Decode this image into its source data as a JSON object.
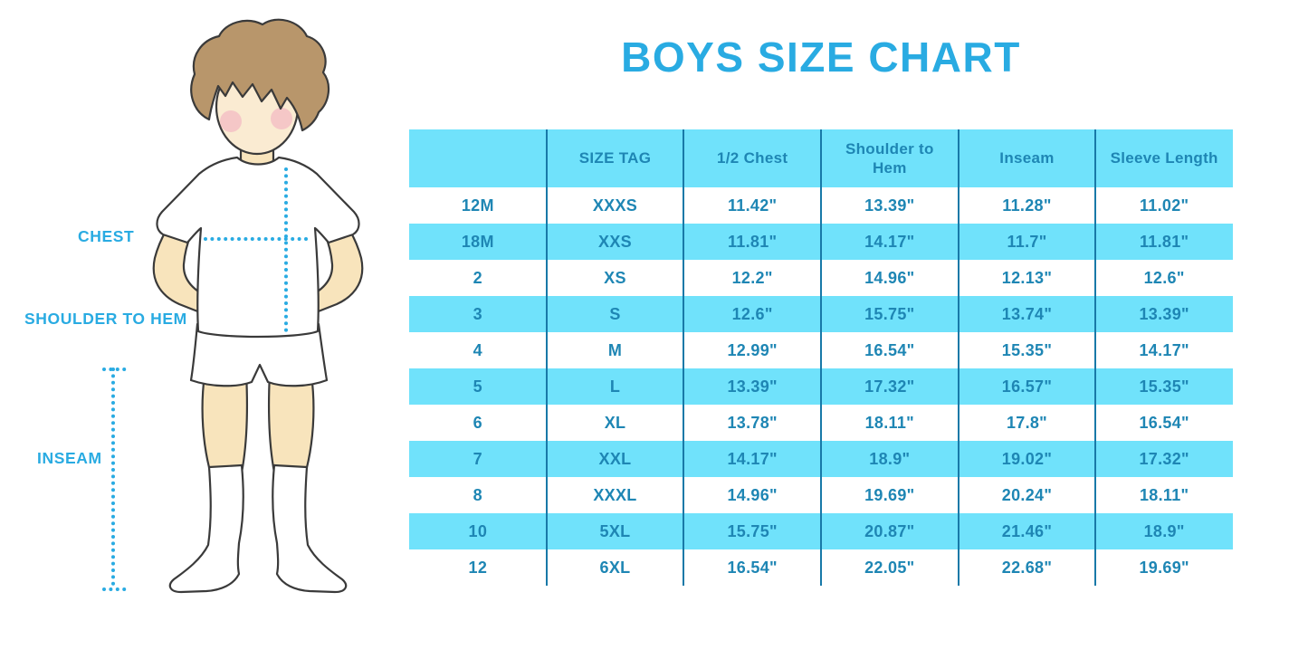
{
  "title": "BOYS SIZE CHART",
  "colors": {
    "title_blue": "#29ABE2",
    "table_cyan": "#70E2FB",
    "table_text": "#1E86B4",
    "divider_blue": "#1879A8",
    "dotted_line": "#29ABE2"
  },
  "figure": {
    "description": "boy-illustration",
    "labels": {
      "chest": "CHEST",
      "shoulder_to_hem": "SHOULDER TO HEM",
      "inseam": "INSEAM"
    }
  },
  "chart_data": {
    "type": "table",
    "title": "BOYS SIZE CHART",
    "headers": [
      "",
      "SIZE TAG",
      "1/2 Chest",
      "Shoulder to Hem",
      "Inseam",
      "Sleeve Length"
    ],
    "rows": [
      [
        "12M",
        "XXXS",
        "11.42\"",
        "13.39\"",
        "11.28\"",
        "11.02\""
      ],
      [
        "18M",
        "XXS",
        "11.81\"",
        "14.17\"",
        "11.7\"",
        "11.81\""
      ],
      [
        "2",
        "XS",
        "12.2\"",
        "14.96\"",
        "12.13\"",
        "12.6\""
      ],
      [
        "3",
        "S",
        "12.6\"",
        "15.75\"",
        "13.74\"",
        "13.39\""
      ],
      [
        "4",
        "M",
        "12.99\"",
        "16.54\"",
        "15.35\"",
        "14.17\""
      ],
      [
        "5",
        "L",
        "13.39\"",
        "17.32\"",
        "16.57\"",
        "15.35\""
      ],
      [
        "6",
        "XL",
        "13.78\"",
        "18.11\"",
        "17.8\"",
        "16.54\""
      ],
      [
        "7",
        "XXL",
        "14.17\"",
        "18.9\"",
        "19.02\"",
        "17.32\""
      ],
      [
        "8",
        "XXXL",
        "14.96\"",
        "19.69\"",
        "20.24\"",
        "18.11\""
      ],
      [
        "10",
        "5XL",
        "15.75\"",
        "20.87\"",
        "21.46\"",
        "18.9\""
      ],
      [
        "12",
        "6XL",
        "16.54\"",
        "22.05\"",
        "22.68\"",
        "19.69\""
      ]
    ],
    "row_shading": "alternating white / cyan starting white, header cyan",
    "legend_position": "none",
    "grid": "vertical column dividers only"
  }
}
